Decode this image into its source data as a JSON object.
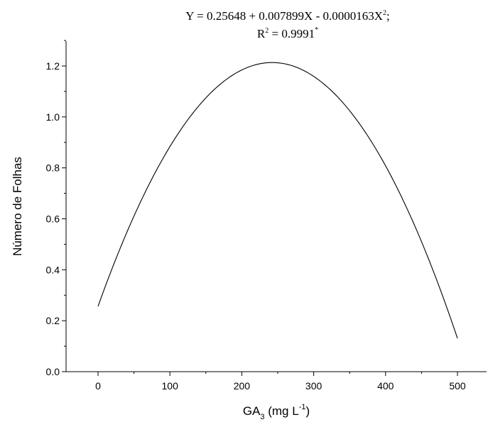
{
  "chart_data": {
    "type": "line",
    "title_parts": {
      "line1_main": "Y = 0.25648 + 0.007899X - 0.0000163X",
      "line1_sup": "2",
      "line1_end": ";",
      "line2_main": "R",
      "line2_sup": "2",
      "line2_value": " = 0.9991",
      "line2_mark": "*"
    },
    "xlabel_parts": {
      "base": "GA",
      "sub": "3",
      "middle": " (mg L",
      "sup": "-1",
      "end": ")"
    },
    "ylabel": "Número de Folhas",
    "xlim": [
      -50,
      540
    ],
    "ylim": [
      0,
      1.3
    ],
    "xticks": [
      0,
      100,
      200,
      300,
      400,
      500
    ],
    "yticks": [
      0.0,
      0.2,
      0.4,
      0.6,
      0.8,
      1.0,
      1.2
    ],
    "grid": false,
    "legend": "none",
    "model": {
      "a": 0.25648,
      "b": 0.007899,
      "c": -1.63e-05
    },
    "series": [
      {
        "x": [
          0,
          25,
          50,
          75,
          100,
          125,
          150,
          175,
          200,
          225,
          242,
          250,
          275,
          300,
          325,
          350,
          375,
          400,
          425,
          450,
          475,
          500
        ],
        "y": [
          0.256,
          0.443,
          0.61,
          0.757,
          0.884,
          0.99,
          1.075,
          1.14,
          1.184,
          1.208,
          1.213,
          1.212,
          1.195,
          1.159,
          1.101,
          1.024,
          0.926,
          0.808,
          0.669,
          0.51,
          0.33,
          0.131
        ]
      }
    ]
  }
}
